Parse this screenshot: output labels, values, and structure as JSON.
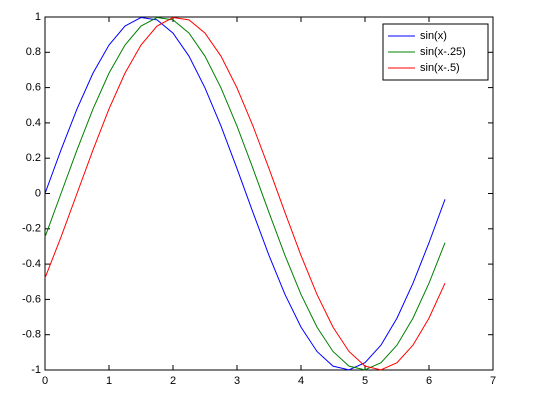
{
  "chart_data": {
    "type": "line",
    "x": [
      0,
      0.25,
      0.5,
      0.75,
      1,
      1.25,
      1.5,
      1.75,
      2,
      2.25,
      2.5,
      2.75,
      3,
      3.25,
      3.5,
      3.75,
      4,
      4.25,
      4.5,
      4.75,
      5,
      5.25,
      5.5,
      5.75,
      6,
      6.25
    ],
    "series": [
      {
        "name": "sin(x)",
        "color": "#0000ff",
        "values": [
          0,
          0.247,
          0.479,
          0.682,
          0.841,
          0.949,
          0.997,
          0.984,
          0.909,
          0.778,
          0.598,
          0.382,
          0.141,
          -0.108,
          -0.351,
          -0.572,
          -0.757,
          -0.895,
          -0.978,
          -0.999,
          -0.959,
          -0.859,
          -0.706,
          -0.508,
          -0.279,
          -0.033
        ]
      },
      {
        "name": "sin(x-.25)",
        "color": "#008000",
        "values": [
          -0.247,
          0,
          0.247,
          0.479,
          0.682,
          0.841,
          0.949,
          0.997,
          0.984,
          0.909,
          0.778,
          0.598,
          0.382,
          0.141,
          -0.108,
          -0.351,
          -0.572,
          -0.757,
          -0.895,
          -0.978,
          -0.999,
          -0.959,
          -0.859,
          -0.706,
          -0.508,
          -0.279
        ]
      },
      {
        "name": "sin(x-.5)",
        "color": "#ff0000",
        "values": [
          -0.479,
          -0.247,
          0,
          0.247,
          0.479,
          0.682,
          0.841,
          0.949,
          0.997,
          0.984,
          0.909,
          0.778,
          0.598,
          0.382,
          0.141,
          -0.108,
          -0.351,
          -0.572,
          -0.757,
          -0.895,
          -0.978,
          -0.999,
          -0.959,
          -0.859,
          -0.706,
          -0.508
        ]
      }
    ],
    "xlim": [
      0,
      7
    ],
    "xticks": [
      0,
      1,
      2,
      3,
      4,
      5,
      6,
      7
    ],
    "ylim": [
      -1,
      1
    ],
    "yticks": [
      -1,
      -0.8,
      -0.6,
      -0.4,
      -0.2,
      0,
      0.2,
      0.4,
      0.6,
      0.8,
      1
    ],
    "grid": false,
    "legend": "top-right"
  }
}
